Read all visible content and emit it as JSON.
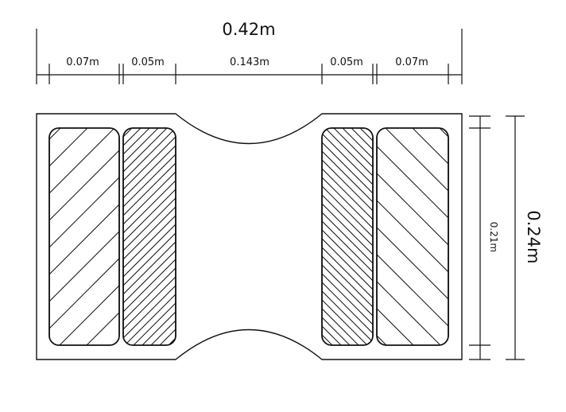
{
  "dimensions": {
    "total_width": "0.42m",
    "segments": [
      "0.07m",
      "0.05m",
      "0.143m",
      "0.05m",
      "0.07m"
    ],
    "inner_height": "0.21m",
    "total_height": "0.24m"
  },
  "colors": {
    "line": "#111111",
    "background": "#ffffff"
  }
}
